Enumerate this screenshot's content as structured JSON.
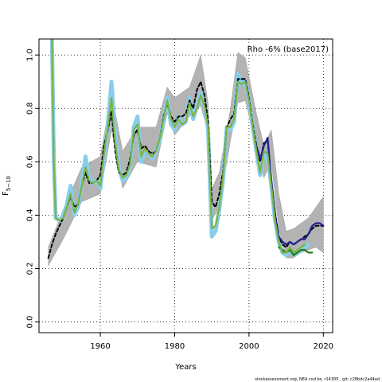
{
  "chart_data": {
    "type": "line",
    "title": "",
    "annotation": "Rho -6% (base2017)",
    "xlabel": "Years",
    "ylabel_main": "F",
    "ylabel_sub": "5−10",
    "footer": "stockassessment.org, NEA cod bs, r14305 , git: c28bdc2a44ad",
    "xlim": [
      1943.5,
      2022.5
    ],
    "ylim": [
      -0.04,
      1.06
    ],
    "xticks": [
      1960,
      1980,
      2000,
      2020
    ],
    "yticks": [
      0.0,
      0.2,
      0.4,
      0.6,
      0.8,
      1.0
    ],
    "xtick_labels": [
      "1960",
      "1980",
      "2000",
      "2020"
    ],
    "ytick_labels": [
      "0.0",
      "0.2",
      "0.4",
      "0.6",
      "0.8",
      "1.0"
    ],
    "grid": true,
    "confidence_band": {
      "x": [
        1946,
        1950,
        1955,
        1960,
        1963,
        1966,
        1970,
        1975,
        1978,
        1980,
        1984,
        1987,
        1989,
        1990,
        1992,
        1995,
        1997,
        1999,
        2002,
        2004,
        2006,
        2008,
        2010,
        2012,
        2014,
        2016,
        2018,
        2020
      ],
      "upper": [
        0.28,
        0.42,
        0.58,
        0.62,
        0.86,
        0.64,
        0.73,
        0.73,
        0.88,
        0.84,
        0.88,
        1.0,
        0.82,
        0.5,
        0.56,
        0.8,
        1.01,
        0.99,
        0.78,
        0.66,
        0.72,
        0.48,
        0.34,
        0.35,
        0.37,
        0.39,
        0.43,
        0.47
      ],
      "lower": [
        0.21,
        0.31,
        0.45,
        0.48,
        0.72,
        0.5,
        0.6,
        0.58,
        0.78,
        0.7,
        0.77,
        0.81,
        0.71,
        0.38,
        0.43,
        0.68,
        0.82,
        0.83,
        0.66,
        0.54,
        0.6,
        0.35,
        0.24,
        0.24,
        0.26,
        0.27,
        0.28,
        0.26
      ]
    },
    "series": [
      {
        "color": "#87ceeb",
        "x": [
          1947,
          1947.5,
          1948,
          1949,
          1950,
          1951,
          1952,
          1953,
          1954,
          1955,
          1956,
          1957,
          1958,
          1959,
          1960,
          1961,
          1962,
          1963,
          1964,
          1965,
          1966,
          1967,
          1968,
          1969,
          1970,
          1971,
          1972,
          1973,
          1974,
          1975,
          1976,
          1977,
          1978,
          1979,
          1980,
          1981,
          1982,
          1983,
          1984,
          1985,
          1986,
          1987,
          1988,
          1989,
          1990,
          1991,
          1992,
          1993,
          1994,
          1995,
          1996,
          1997,
          1998,
          1999,
          2000,
          2001,
          2002,
          2003,
          2004,
          2005,
          2006,
          2007,
          2008,
          2009,
          2010,
          2011,
          2012,
          2013,
          2014,
          2015,
          2016
        ],
        "y": [
          1.06,
          0.6,
          0.39,
          0.38,
          0.4,
          0.44,
          0.51,
          0.4,
          0.43,
          0.52,
          0.62,
          0.54,
          0.52,
          0.53,
          0.5,
          0.62,
          0.74,
          0.9,
          0.7,
          0.58,
          0.53,
          0.54,
          0.58,
          0.73,
          0.77,
          0.6,
          0.64,
          0.63,
          0.61,
          0.64,
          0.68,
          0.76,
          0.84,
          0.74,
          0.72,
          0.77,
          0.74,
          0.75,
          0.84,
          0.76,
          0.81,
          0.86,
          0.81,
          0.72,
          0.32,
          0.34,
          0.42,
          0.53,
          0.73,
          0.72,
          0.75,
          0.93,
          0.89,
          0.9,
          0.83,
          0.73,
          0.64,
          0.55,
          0.64,
          0.62,
          0.51,
          0.38,
          0.3,
          0.26,
          0.25,
          0.27,
          0.25,
          0.26,
          0.27,
          0.28,
          0.29
        ]
      },
      {
        "color": "#000000",
        "dashed": true,
        "x": [
          1946,
          1947,
          1948,
          1949,
          1950,
          1951,
          1952,
          1953,
          1954,
          1955,
          1956,
          1957,
          1958,
          1959,
          1960,
          1961,
          1962,
          1963,
          1964,
          1965,
          1966,
          1967,
          1968,
          1969,
          1970,
          1971,
          1972,
          1973,
          1974,
          1975,
          1976,
          1977,
          1978,
          1979,
          1980,
          1981,
          1982,
          1983,
          1984,
          1985,
          1986,
          1987,
          1988,
          1989,
          1990,
          1991,
          1992,
          1993,
          1994,
          1995,
          1996,
          1997,
          1998,
          1999,
          2000,
          2001,
          2002,
          2003,
          2004,
          2005,
          2006,
          2007,
          2008,
          2009,
          2010,
          2011,
          2012,
          2013,
          2014,
          2015,
          2016,
          2017,
          2018,
          2019,
          2020
        ],
        "y": [
          0.24,
          0.29,
          0.33,
          0.36,
          0.39,
          0.43,
          0.47,
          0.43,
          0.44,
          0.51,
          0.56,
          0.52,
          0.52,
          0.53,
          0.55,
          0.66,
          0.72,
          0.79,
          0.64,
          0.56,
          0.55,
          0.56,
          0.61,
          0.7,
          0.72,
          0.65,
          0.66,
          0.64,
          0.63,
          0.64,
          0.69,
          0.77,
          0.82,
          0.77,
          0.75,
          0.77,
          0.77,
          0.78,
          0.83,
          0.8,
          0.87,
          0.9,
          0.85,
          0.75,
          0.45,
          0.43,
          0.48,
          0.56,
          0.73,
          0.76,
          0.78,
          0.91,
          0.91,
          0.91,
          0.84,
          0.74,
          0.66,
          0.6,
          0.67,
          0.68,
          0.53,
          0.41,
          0.32,
          0.29,
          0.28,
          0.3,
          0.29,
          0.3,
          0.31,
          0.32,
          0.33,
          0.35,
          0.36,
          0.36,
          0.36
        ]
      },
      {
        "color": "#1f1f8f",
        "x": [
          2002,
          2003,
          2004,
          2005,
          2006,
          2007,
          2008,
          2009,
          2010,
          2011,
          2012,
          2013,
          2014,
          2015,
          2016,
          2017,
          2018,
          2019,
          2020
        ],
        "y": [
          0.66,
          0.61,
          0.66,
          0.69,
          0.53,
          0.4,
          0.32,
          0.3,
          0.29,
          0.3,
          0.29,
          0.3,
          0.31,
          0.31,
          0.33,
          0.36,
          0.37,
          0.37,
          0.36
        ]
      },
      {
        "color": "#1f7a1f",
        "x": [
          2008,
          2009,
          2010,
          2011,
          2012,
          2013,
          2014,
          2015,
          2016,
          2017
        ],
        "y": [
          0.28,
          0.27,
          0.26,
          0.27,
          0.25,
          0.26,
          0.27,
          0.27,
          0.26,
          0.26
        ]
      },
      {
        "color": "#7cb342",
        "x": [
          1947,
          1947.5,
          1948,
          1949,
          1950,
          1951,
          1952,
          1953,
          1954,
          1955,
          1956,
          1957,
          1958,
          1959,
          1960,
          1961,
          1962,
          1963,
          1964,
          1965,
          1966,
          1967,
          1968,
          1969,
          1970,
          1971,
          1972,
          1973,
          1974,
          1975,
          1976,
          1977,
          1978,
          1979,
          1980,
          1981,
          1982,
          1983,
          1984,
          1985,
          1986,
          1987,
          1988,
          1989,
          1990,
          1991,
          1992,
          1993,
          1994,
          1995,
          1996,
          1997,
          1998,
          1999,
          2000,
          2001,
          2002,
          2003,
          2004,
          2005,
          2006,
          2007,
          2008,
          2009,
          2010,
          2011,
          2012,
          2013,
          2014,
          2015
        ],
        "y": [
          1.06,
          0.6,
          0.39,
          0.38,
          0.39,
          0.43,
          0.48,
          0.41,
          0.44,
          0.51,
          0.58,
          0.53,
          0.52,
          0.53,
          0.51,
          0.63,
          0.73,
          0.84,
          0.67,
          0.57,
          0.54,
          0.55,
          0.59,
          0.72,
          0.74,
          0.62,
          0.65,
          0.63,
          0.62,
          0.64,
          0.69,
          0.76,
          0.83,
          0.76,
          0.73,
          0.76,
          0.74,
          0.75,
          0.82,
          0.77,
          0.8,
          0.85,
          0.81,
          0.73,
          0.35,
          0.36,
          0.43,
          0.54,
          0.73,
          0.73,
          0.76,
          0.9,
          0.89,
          0.9,
          0.83,
          0.73,
          0.64,
          0.56,
          0.64,
          0.63,
          0.51,
          0.38,
          0.3,
          0.26,
          0.26,
          0.28,
          0.26,
          0.27,
          0.28,
          0.29
        ]
      }
    ]
  }
}
